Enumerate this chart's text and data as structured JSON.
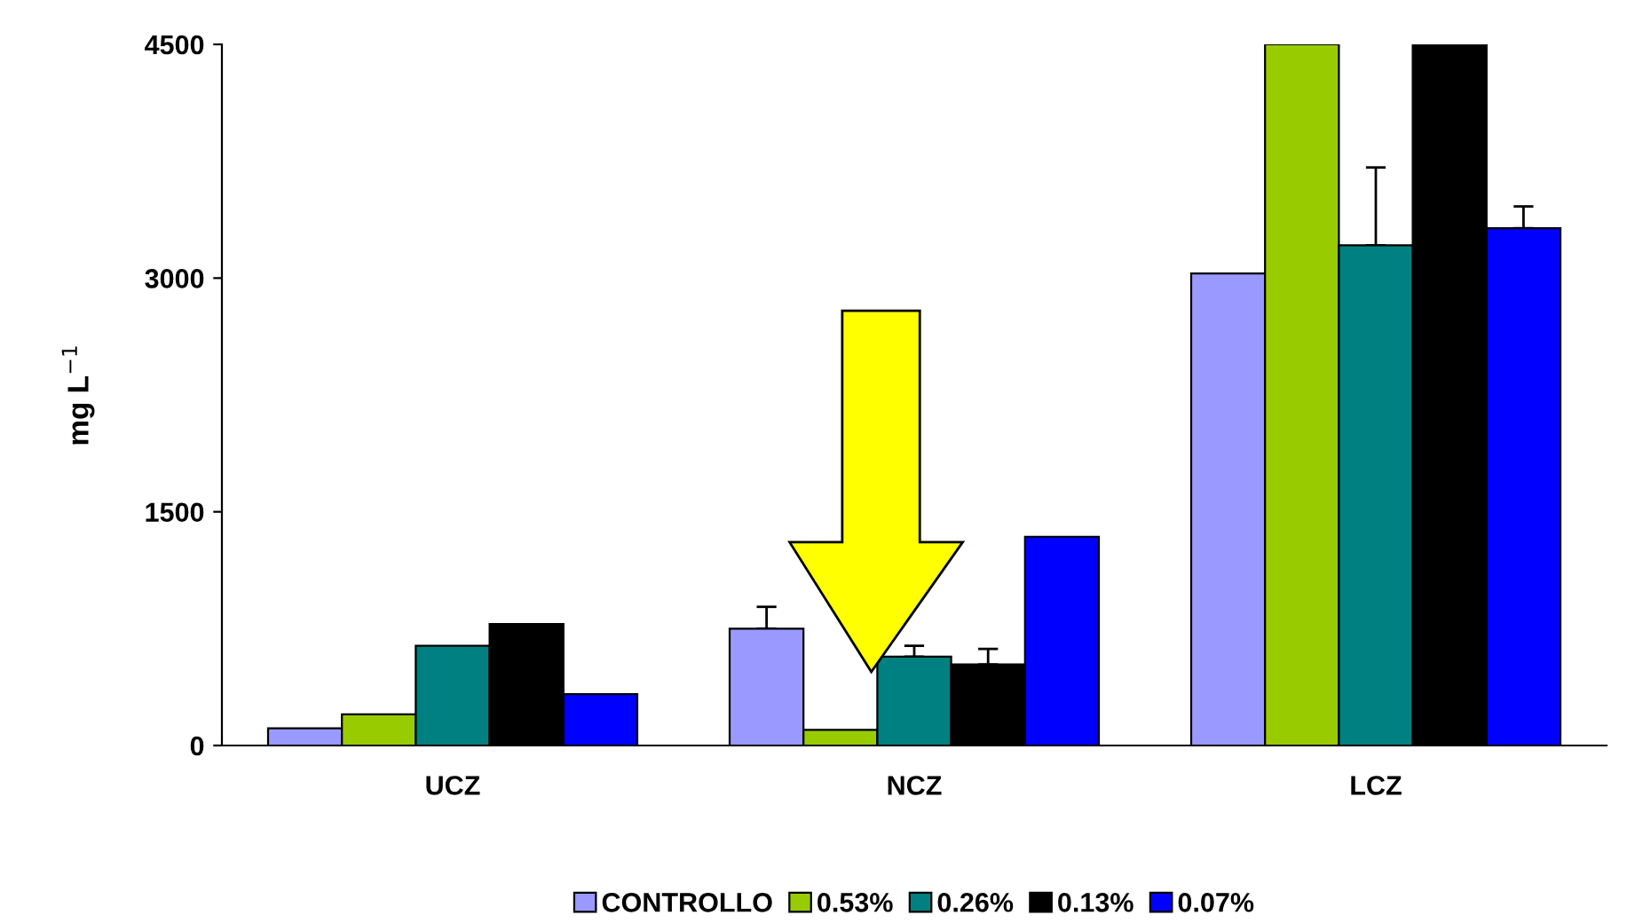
{
  "chart_data": {
    "type": "bar",
    "ylabel": "mg L$^{−1}$",
    "categories": [
      "UCZ",
      "NCZ",
      "LCZ"
    ],
    "series": [
      {
        "name": "CONTROLLO",
        "color": "#9999ff",
        "values": [
          110,
          750,
          3030
        ],
        "errors": [
          null,
          [
            750,
            890
          ],
          null
        ]
      },
      {
        "name": "0.53%",
        "color": "#99cc00",
        "values": [
          200,
          100,
          4500
        ]
      },
      {
        "name": "0.26%",
        "color": "#008080",
        "values": [
          640,
          570,
          3210
        ],
        "errors": [
          null,
          [
            570,
            640
          ],
          [
            3210,
            3710
          ]
        ]
      },
      {
        "name": "0.13%",
        "color": "#000000",
        "values": [
          780,
          520,
          4500
        ],
        "errors": [
          null,
          [
            520,
            620
          ],
          null
        ]
      },
      {
        "name": "0.07%",
        "color": "#0000ff",
        "values": [
          330,
          1340,
          3320
        ],
        "errors": [
          null,
          null,
          [
            3320,
            3460
          ]
        ]
      }
    ],
    "ylim": [
      0,
      4500
    ],
    "yticks": [
      0,
      1500,
      3000,
      4500
    ],
    "grid": false,
    "legend": "bottom"
  }
}
